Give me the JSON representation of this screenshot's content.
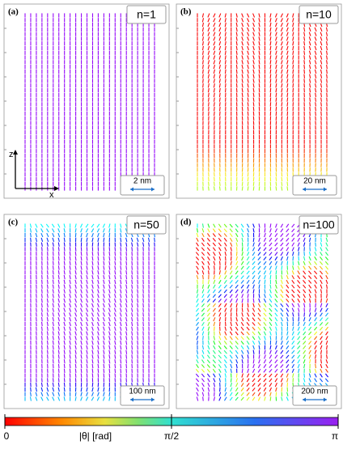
{
  "panels": [
    {
      "label": "(a)",
      "n": "n=1",
      "scale": "2 nm"
    },
    {
      "label": "(b)",
      "n": "n=10",
      "scale": "20 nm"
    },
    {
      "label": "(c)",
      "n": "n=50",
      "scale": "100 nm"
    },
    {
      "label": "(d)",
      "n": "n=100",
      "scale": "200 nm"
    }
  ],
  "axes": {
    "z": "z",
    "x": "x"
  },
  "colorbar": {
    "title": "|θ| [rad]",
    "labels": [
      "0",
      "π/2",
      "π"
    ]
  }
}
